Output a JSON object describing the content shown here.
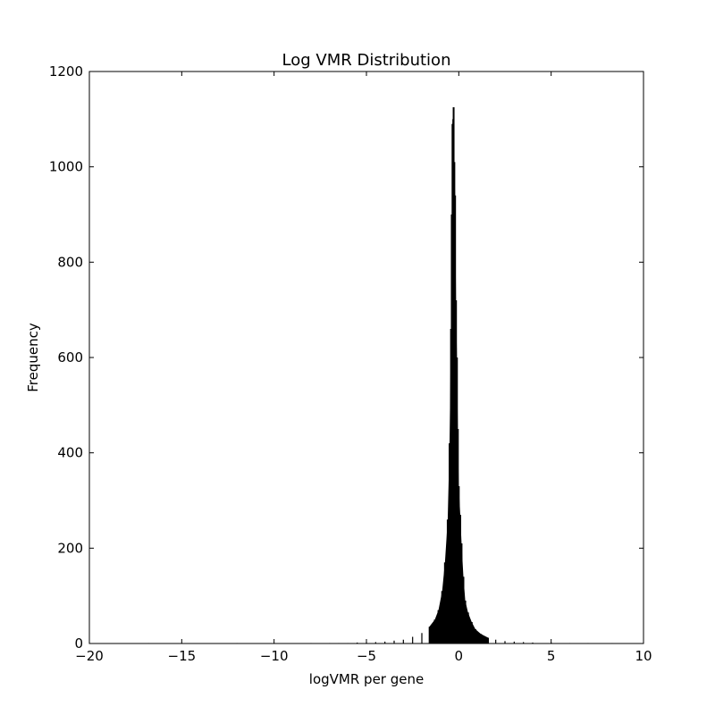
{
  "chart_data": {
    "type": "histogram",
    "title": "Log VMR Distribution",
    "xlabel": "logVMR per gene",
    "ylabel": "Frequency",
    "xlim": [
      -20,
      10
    ],
    "ylim": [
      0,
      1200
    ],
    "xticks": [
      -20,
      -15,
      -10,
      -5,
      0,
      5,
      10
    ],
    "xtick_labels": [
      "−20",
      "−15",
      "−10",
      "−5",
      "0",
      "5",
      "10"
    ],
    "yticks": [
      0,
      200,
      400,
      600,
      800,
      1000,
      1200
    ],
    "ytick_labels": [
      "0",
      "200",
      "400",
      "600",
      "800",
      "1000",
      "1200"
    ],
    "grid": false,
    "peak": {
      "x": -0.28,
      "value": 1125
    },
    "bins": [
      {
        "x": -16.8,
        "value": 1
      },
      {
        "x": -12.0,
        "value": 1
      },
      {
        "x": -8.0,
        "value": 1
      },
      {
        "x": -7.0,
        "value": 1
      },
      {
        "x": -6.5,
        "value": 1
      },
      {
        "x": -6.0,
        "value": 1
      },
      {
        "x": -5.5,
        "value": 2
      },
      {
        "x": -5.0,
        "value": 2
      },
      {
        "x": -4.5,
        "value": 3
      },
      {
        "x": -4.0,
        "value": 4
      },
      {
        "x": -3.5,
        "value": 6
      },
      {
        "x": -3.0,
        "value": 8
      },
      {
        "x": -2.5,
        "value": 14
      },
      {
        "x": -2.0,
        "value": 22
      },
      {
        "x": -1.6,
        "value": 35
      },
      {
        "x": -1.3,
        "value": 50
      },
      {
        "x": -1.1,
        "value": 70
      },
      {
        "x": -0.9,
        "value": 110
      },
      {
        "x": -0.75,
        "value": 170
      },
      {
        "x": -0.6,
        "value": 260
      },
      {
        "x": -0.5,
        "value": 420
      },
      {
        "x": -0.42,
        "value": 660
      },
      {
        "x": -0.38,
        "value": 900
      },
      {
        "x": -0.34,
        "value": 1090
      },
      {
        "x": -0.3,
        "value": 1100
      },
      {
        "x": -0.28,
        "value": 1125
      },
      {
        "x": -0.24,
        "value": 1010
      },
      {
        "x": -0.2,
        "value": 940
      },
      {
        "x": -0.15,
        "value": 720
      },
      {
        "x": -0.1,
        "value": 600
      },
      {
        "x": -0.05,
        "value": 450
      },
      {
        "x": 0.0,
        "value": 330
      },
      {
        "x": 0.08,
        "value": 270
      },
      {
        "x": 0.15,
        "value": 210
      },
      {
        "x": 0.25,
        "value": 140
      },
      {
        "x": 0.35,
        "value": 90
      },
      {
        "x": 0.5,
        "value": 65
      },
      {
        "x": 0.7,
        "value": 45
      },
      {
        "x": 0.9,
        "value": 30
      },
      {
        "x": 1.2,
        "value": 20
      },
      {
        "x": 1.6,
        "value": 12
      },
      {
        "x": 2.0,
        "value": 8
      },
      {
        "x": 2.5,
        "value": 5
      },
      {
        "x": 3.0,
        "value": 4
      },
      {
        "x": 3.5,
        "value": 3
      },
      {
        "x": 4.0,
        "value": 2
      },
      {
        "x": 5.0,
        "value": 2
      },
      {
        "x": 6.0,
        "value": 1
      },
      {
        "x": 7.0,
        "value": 1
      },
      {
        "x": 8.3,
        "value": 1
      }
    ]
  }
}
